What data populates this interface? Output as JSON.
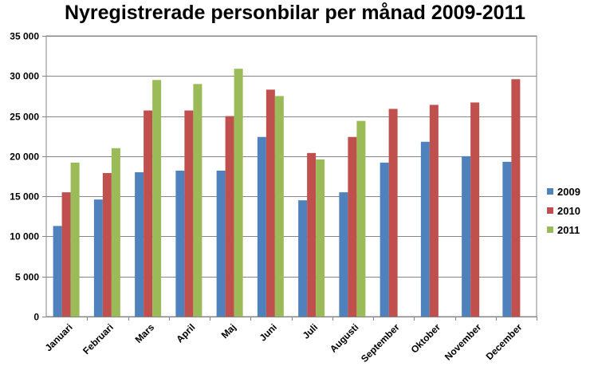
{
  "chart_data": {
    "type": "bar",
    "title": "Nyregistrerade personbilar per månad 2009-2011",
    "categories": [
      "Januari",
      "Februari",
      "Mars",
      "April",
      "Maj",
      "Juni",
      "Juli",
      "Augusti",
      "September",
      "Oktober",
      "November",
      "December"
    ],
    "series": [
      {
        "name": "2009",
        "color": "#4F81BD",
        "values": [
          11300,
          14600,
          18000,
          18200,
          18200,
          22400,
          14500,
          15500,
          19200,
          21800,
          20000,
          19300
        ]
      },
      {
        "name": "2010",
        "color": "#C0504D",
        "values": [
          15500,
          17900,
          25700,
          25700,
          25000,
          28300,
          20400,
          22400,
          25900,
          26400,
          26700,
          29600
        ]
      },
      {
        "name": "2011",
        "color": "#9BBB59",
        "values": [
          19200,
          21000,
          29500,
          29000,
          30900,
          27500,
          19600,
          24400,
          null,
          null,
          null,
          null
        ]
      }
    ],
    "ylim": [
      0,
      35000
    ],
    "yticks": [
      "0",
      "5 000",
      "10 000",
      "15 000",
      "20 000",
      "25 000",
      "30 000",
      "35 000"
    ],
    "ytick_values": [
      0,
      5000,
      10000,
      15000,
      20000,
      25000,
      30000,
      35000
    ],
    "grid": true,
    "legend": "right"
  }
}
